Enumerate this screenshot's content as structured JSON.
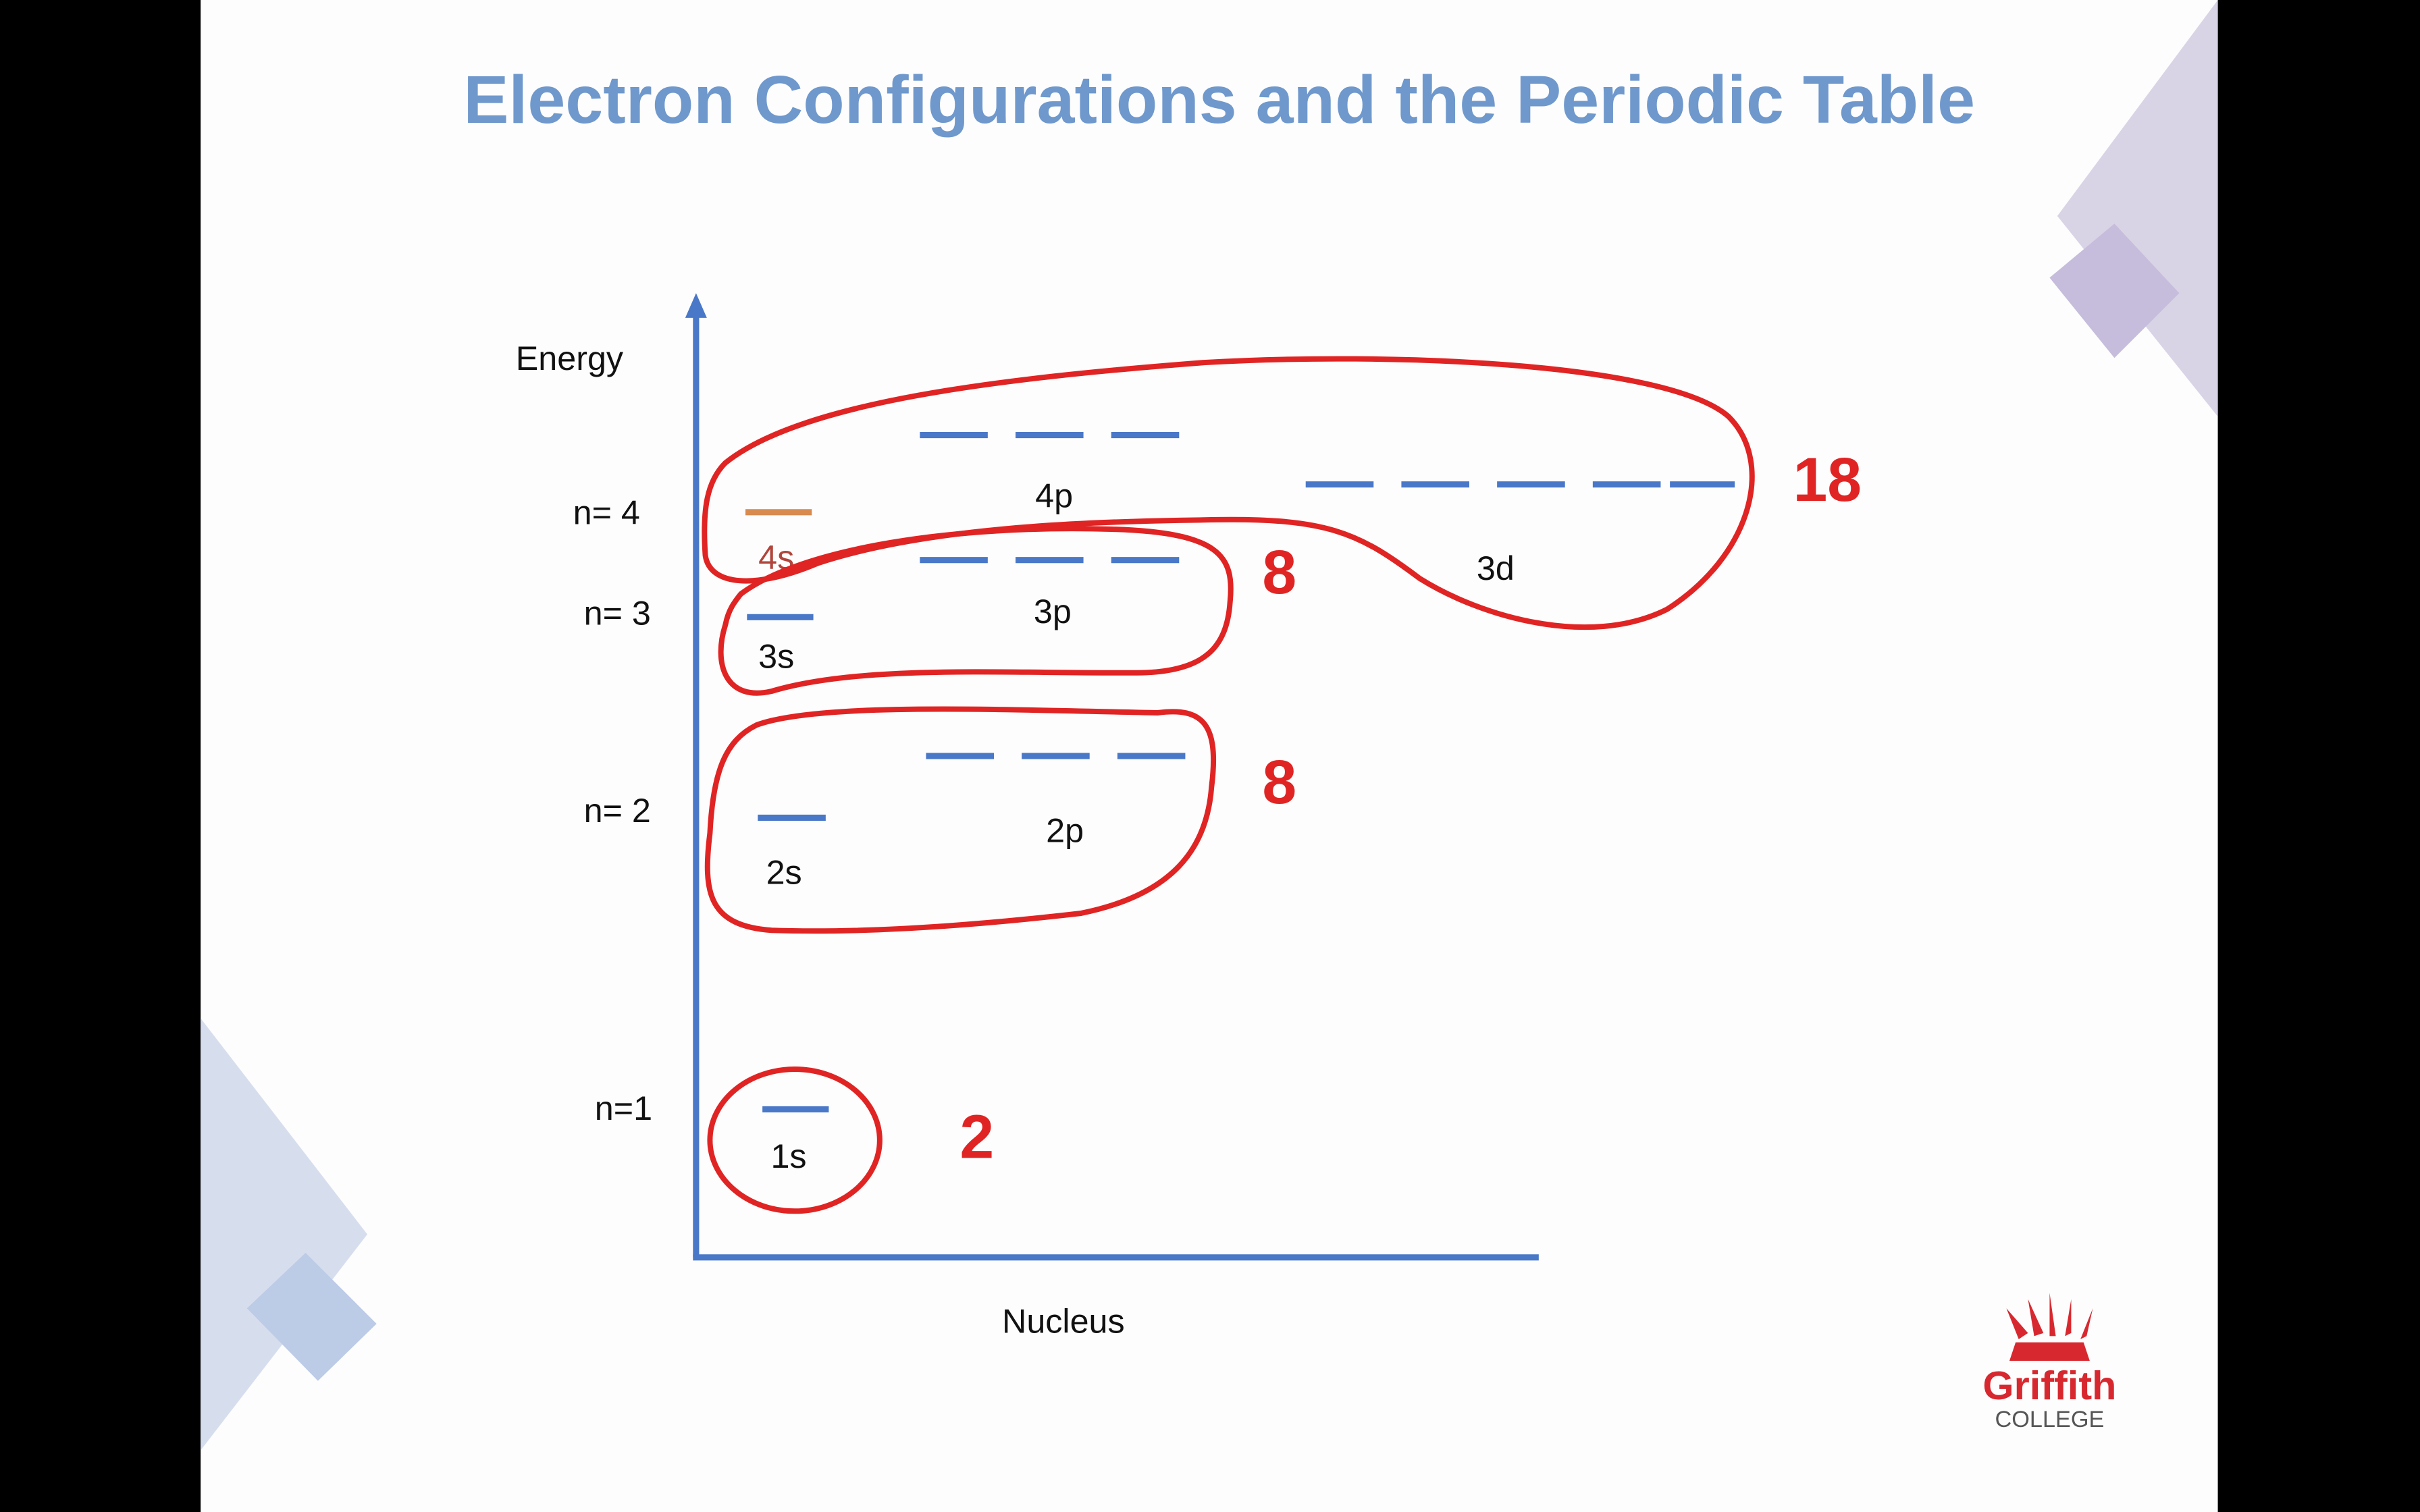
{
  "slide": {
    "title": "Electron Configurations and the Periodic Table",
    "axis": {
      "y_label": "Energy",
      "x_label": "Nucleus"
    },
    "levels": [
      "n= 4",
      "n= 3",
      "n= 2",
      "n=1"
    ],
    "orbitals": {
      "4p": "4p",
      "4s": "4s",
      "3d": "3d",
      "3p": "3p",
      "3s": "3s",
      "2p": "2p",
      "2s": "2s",
      "1s": "1s"
    },
    "counts": {
      "period4": "18",
      "period3": "8",
      "period2": "8",
      "period1": "2"
    },
    "logo": {
      "name": "Griffith",
      "sub": "COLLEGE"
    }
  }
}
